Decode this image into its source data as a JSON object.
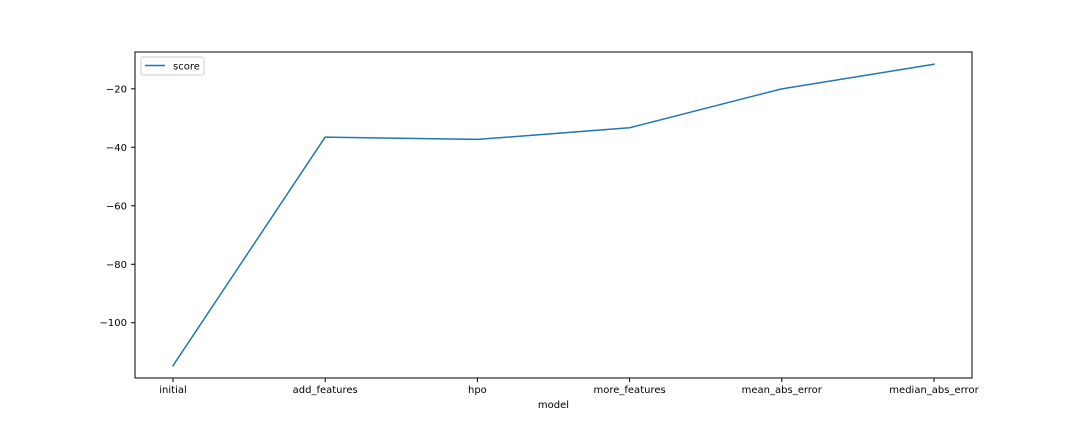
{
  "chart_data": {
    "type": "line",
    "title": "",
    "xlabel": "model",
    "ylabel": "",
    "categories": [
      "initial",
      "add_features",
      "hpo",
      "more_features",
      "mean_abs_error",
      "median_abs_error"
    ],
    "series": [
      {
        "name": "score",
        "color": "#1f77b4",
        "values": [
          -114.7,
          -36.5,
          -37.3,
          -33.3,
          -20.0,
          -11.6
        ]
      }
    ],
    "ylim": [
      -118.9,
      -7.4
    ],
    "yticks": [
      -100,
      -80,
      -60,
      -40,
      -20
    ],
    "grid": false,
    "legend": "top-left"
  }
}
